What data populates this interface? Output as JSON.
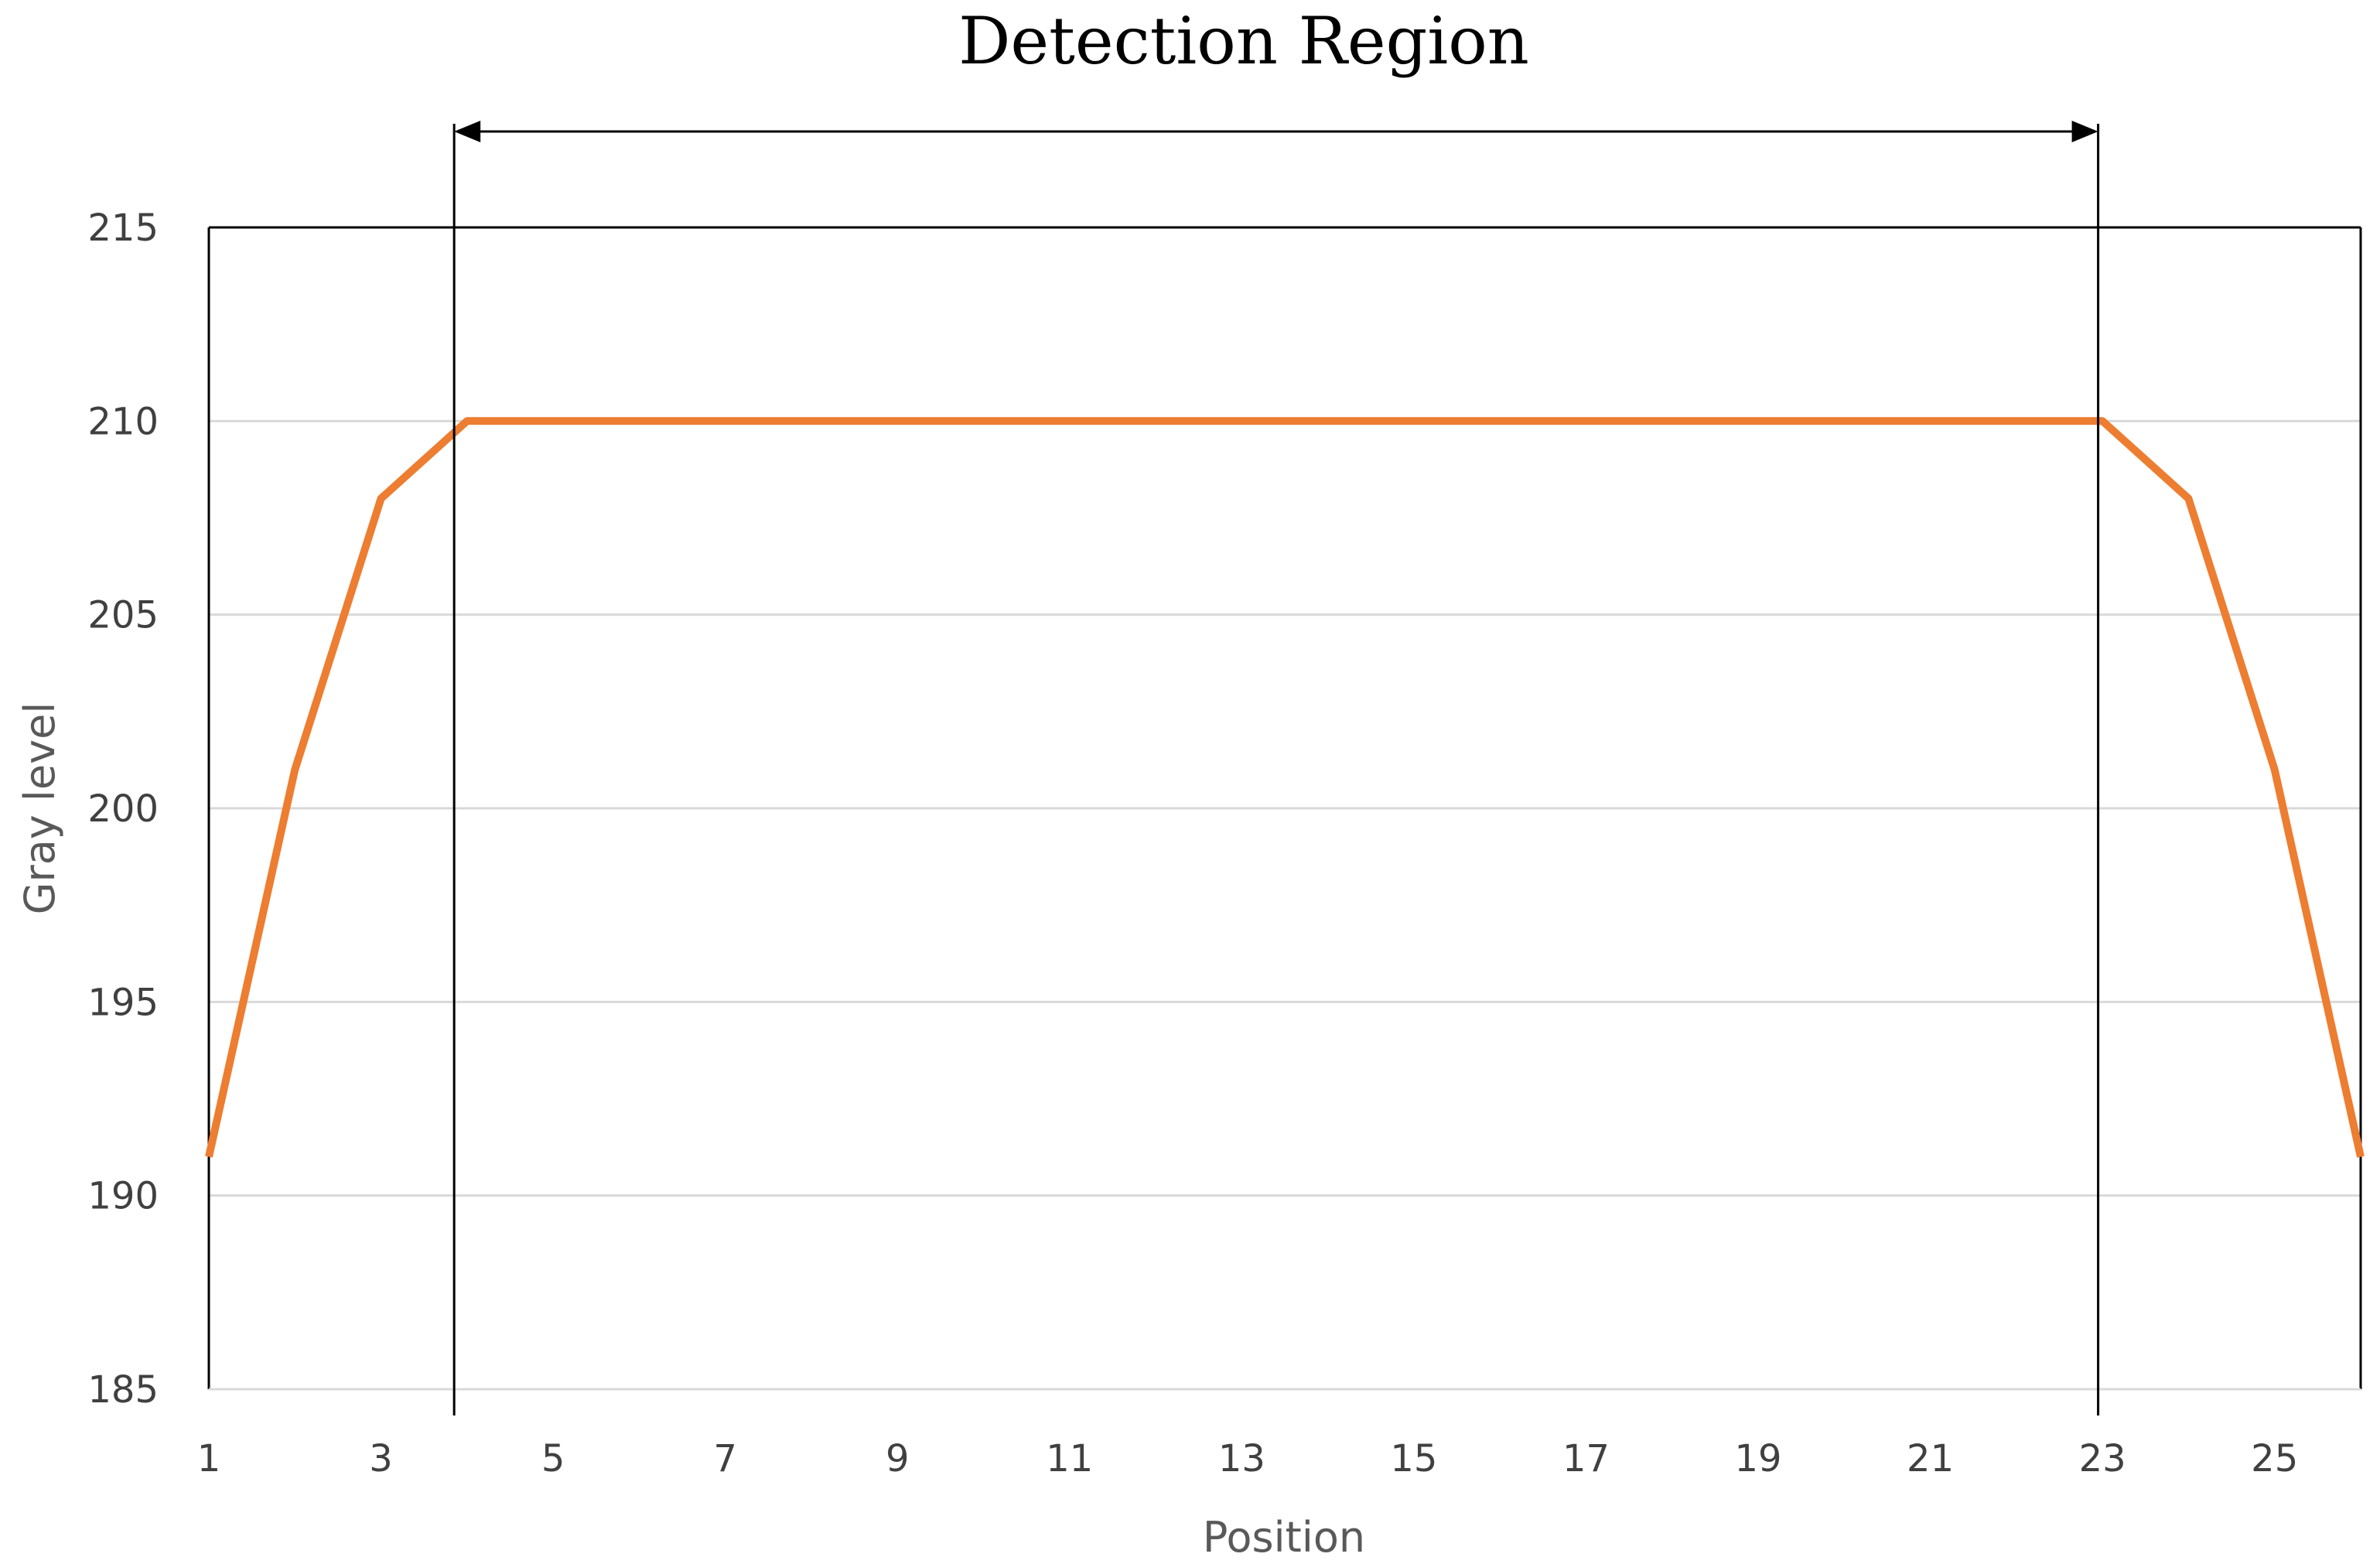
{
  "chart_data": {
    "type": "line",
    "title": "",
    "xlabel": "Position",
    "ylabel": "Gray level",
    "x": [
      1,
      2,
      3,
      4,
      5,
      6,
      7,
      8,
      9,
      10,
      11,
      12,
      13,
      14,
      15,
      16,
      17,
      18,
      19,
      20,
      21,
      22,
      23,
      24,
      25,
      26
    ],
    "series": [
      {
        "color": "#ED7D31",
        "values": [
          191,
          201,
          208,
          210,
          210,
          210,
          210,
          210,
          210,
          210,
          210,
          210,
          210,
          210,
          210,
          210,
          210,
          210,
          210,
          210,
          210,
          210,
          210,
          208,
          201,
          191
        ]
      }
    ],
    "xlim": [
      1,
      26
    ],
    "ylim": [
      185,
      215
    ],
    "x_tick_labels": [
      "1",
      "3",
      "5",
      "7",
      "9",
      "11",
      "13",
      "15",
      "17",
      "19",
      "21",
      "23",
      "25"
    ],
    "y_tick_labels": [
      "185",
      "190",
      "195",
      "200",
      "205",
      "210",
      "215"
    ],
    "grid": true,
    "legend": "none",
    "annotation": {
      "label": "Detection Region",
      "from_x": 3.85,
      "to_x": 22.95,
      "type": "double-headed arrow"
    }
  }
}
